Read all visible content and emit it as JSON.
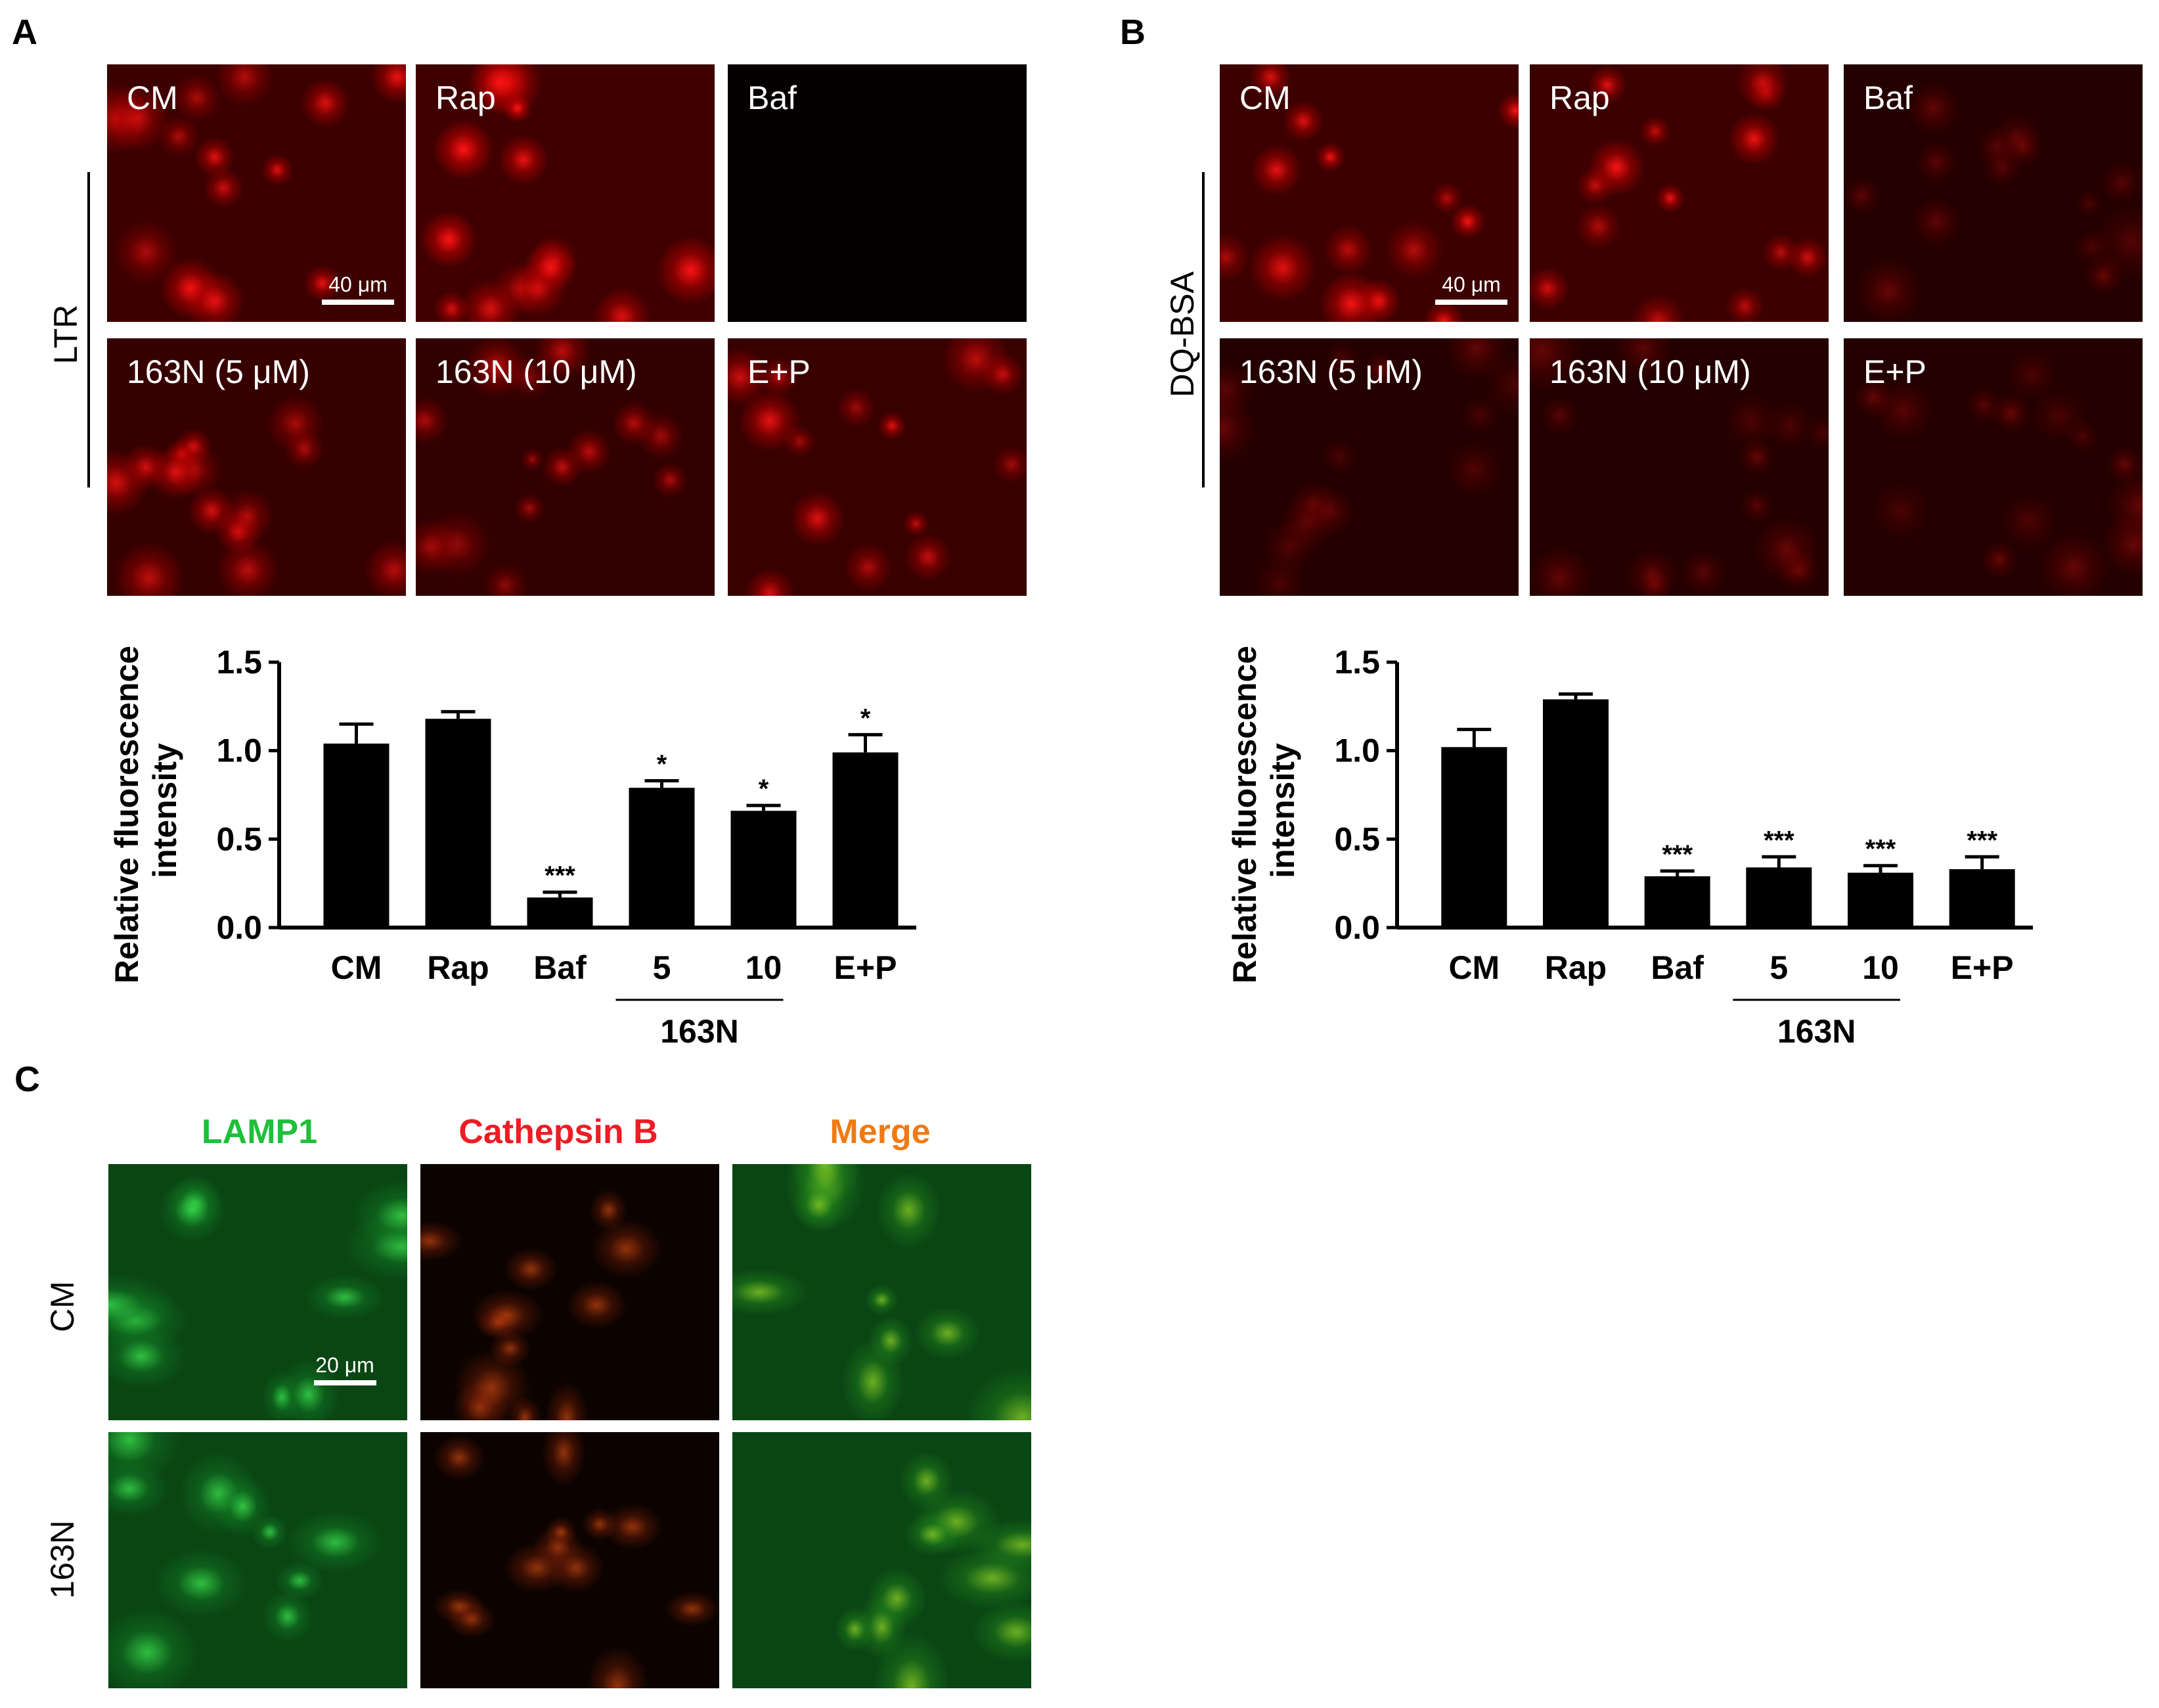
{
  "panelA": {
    "letter": "A",
    "row_label": "LTR",
    "scale": "40 μm",
    "tiles": [
      {
        "label": "CM",
        "intensity": 1.0
      },
      {
        "label": "Rap",
        "intensity": 1.1
      },
      {
        "label": "Baf",
        "intensity": 0.0
      },
      {
        "label": "163N (5 μM)",
        "intensity": 0.85
      },
      {
        "label": "163N (10 μM)",
        "intensity": 0.7
      },
      {
        "label": "E+P",
        "intensity": 0.9
      }
    ]
  },
  "panelB": {
    "letter": "B",
    "row_label": "DQ-BSA",
    "scale": "40 μm",
    "tiles": [
      {
        "label": "CM",
        "intensity": 1.0
      },
      {
        "label": "Rap",
        "intensity": 1.0
      },
      {
        "label": "Baf",
        "intensity": 0.3
      },
      {
        "label": "163N (5 μM)",
        "intensity": 0.3
      },
      {
        "label": "163N (10 μM)",
        "intensity": 0.3
      },
      {
        "label": "E+P",
        "intensity": 0.3
      }
    ]
  },
  "panelC": {
    "letter": "C",
    "columns": [
      "LAMP1",
      "Cathepsin B",
      "Merge"
    ],
    "column_colors": [
      "#1fbf3a",
      "#ee1c24",
      "#f07a12"
    ],
    "rows": [
      "CM",
      "163N"
    ],
    "scale": "20 μm"
  },
  "chart_data": [
    {
      "type": "bar",
      "panel": "A",
      "categories": [
        "CM",
        "Rap",
        "Baf",
        "5",
        "10",
        "E+P"
      ],
      "group_label": "163N",
      "values": [
        1.04,
        1.18,
        0.17,
        0.79,
        0.66,
        0.99
      ],
      "errors": [
        0.11,
        0.04,
        0.03,
        0.04,
        0.03,
        0.1
      ],
      "significance": [
        "",
        "",
        "***",
        "*",
        "*",
        "*"
      ],
      "ylabel": "Relative fluorescence intensity",
      "yticks": [
        "0.0",
        "0.5",
        "1.0",
        "1.5"
      ],
      "ylim": [
        0,
        1.5
      ]
    },
    {
      "type": "bar",
      "panel": "B",
      "categories": [
        "CM",
        "Rap",
        "Baf",
        "5",
        "10",
        "E+P"
      ],
      "group_label": "163N",
      "values": [
        1.02,
        1.29,
        0.29,
        0.34,
        0.31,
        0.33
      ],
      "errors": [
        0.1,
        0.03,
        0.03,
        0.06,
        0.04,
        0.07
      ],
      "significance": [
        "",
        "",
        "***",
        "***",
        "***",
        "***"
      ],
      "ylabel": "Relative fluorescence intensity",
      "yticks": [
        "0.0",
        "0.5",
        "1.0",
        "1.5"
      ],
      "ylim": [
        0,
        1.5
      ]
    }
  ]
}
